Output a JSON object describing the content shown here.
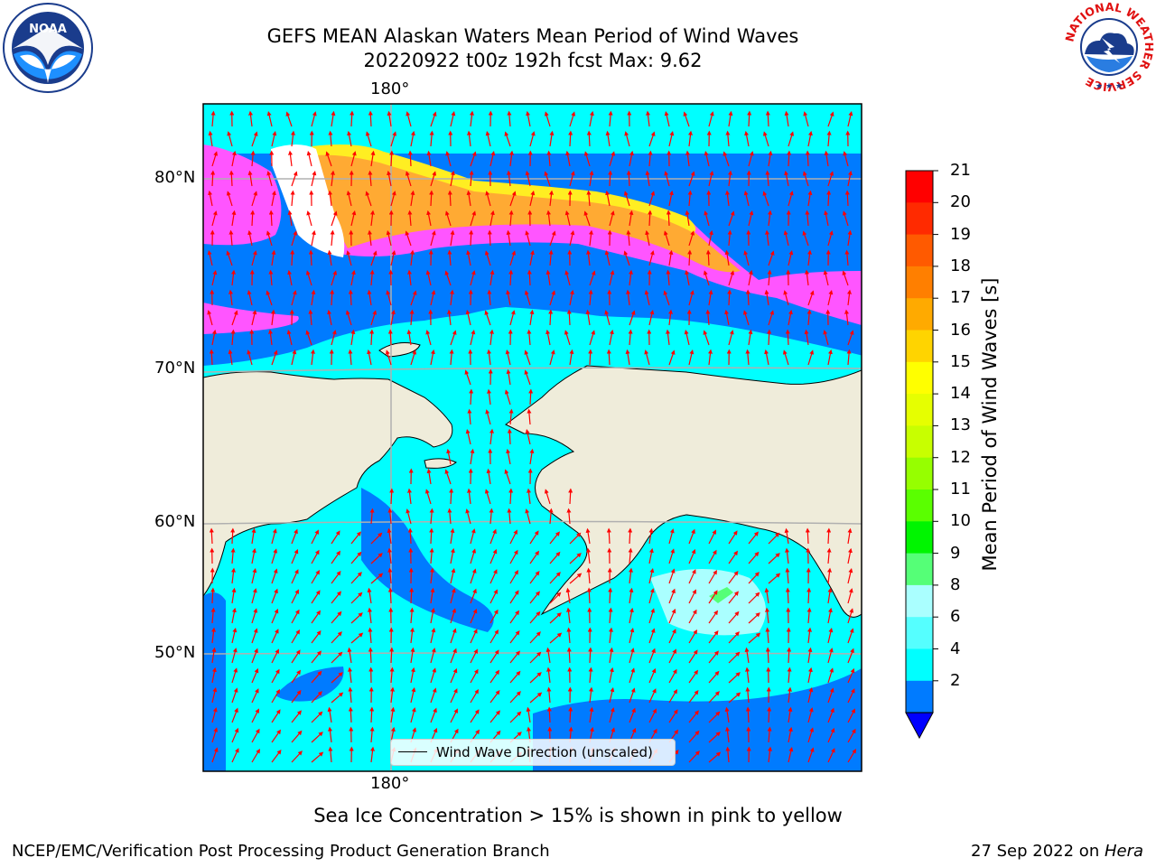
{
  "title": {
    "line1": "GEFS MEAN Alaskan Waters Mean Period of Wind Waves",
    "line2": "20220922 t00z 192h fcst   Max: 9.62"
  },
  "map": {
    "lon_label_top": "180°",
    "lon_label_bottom": "180°",
    "lat_labels": [
      "80°N",
      "70°N",
      "60°N",
      "50°N"
    ],
    "legend_label": "Wind Wave Direction (unscaled)",
    "colors": {
      "land": "#efecda",
      "ocean_low": "#007bff",
      "ocean_mid": "#00ffff",
      "ocean_high": "#57ffff",
      "ice_pink": "#ff55ff",
      "ice_orange": "#ffaa33",
      "ice_yellow": "#ffee22",
      "arrows": "#ff0000",
      "grid": "#b0b0b0"
    }
  },
  "colorbar": {
    "label": "Mean Period of Wind Waves [s]",
    "ticks": [
      "21",
      "20",
      "19",
      "18",
      "17",
      "16",
      "15",
      "14",
      "13",
      "12",
      "11",
      "10",
      "9",
      "8",
      "6",
      "4",
      "2"
    ],
    "colors": [
      "#ff0000",
      "#ff2a00",
      "#ff5a00",
      "#ff7f00",
      "#ffaa00",
      "#ffd400",
      "#ffff00",
      "#e6ff00",
      "#c8ff00",
      "#96ff00",
      "#5aff00",
      "#00f500",
      "#55ff77",
      "#aaffff",
      "#55ffff",
      "#00ffff",
      "#007bff"
    ],
    "extend_color": "#0000ff"
  },
  "caption": "Sea Ice Concentration > 15% is shown in pink to yellow",
  "footer": {
    "left": "NCEP/EMC/Verification Post Processing Product Generation Branch",
    "right_date": "27 Sep 2022 on ",
    "right_host": "Hera"
  },
  "logos": {
    "noaa": "NOAA",
    "nws_ring": "NATIONAL WEATHER SERVICE"
  }
}
